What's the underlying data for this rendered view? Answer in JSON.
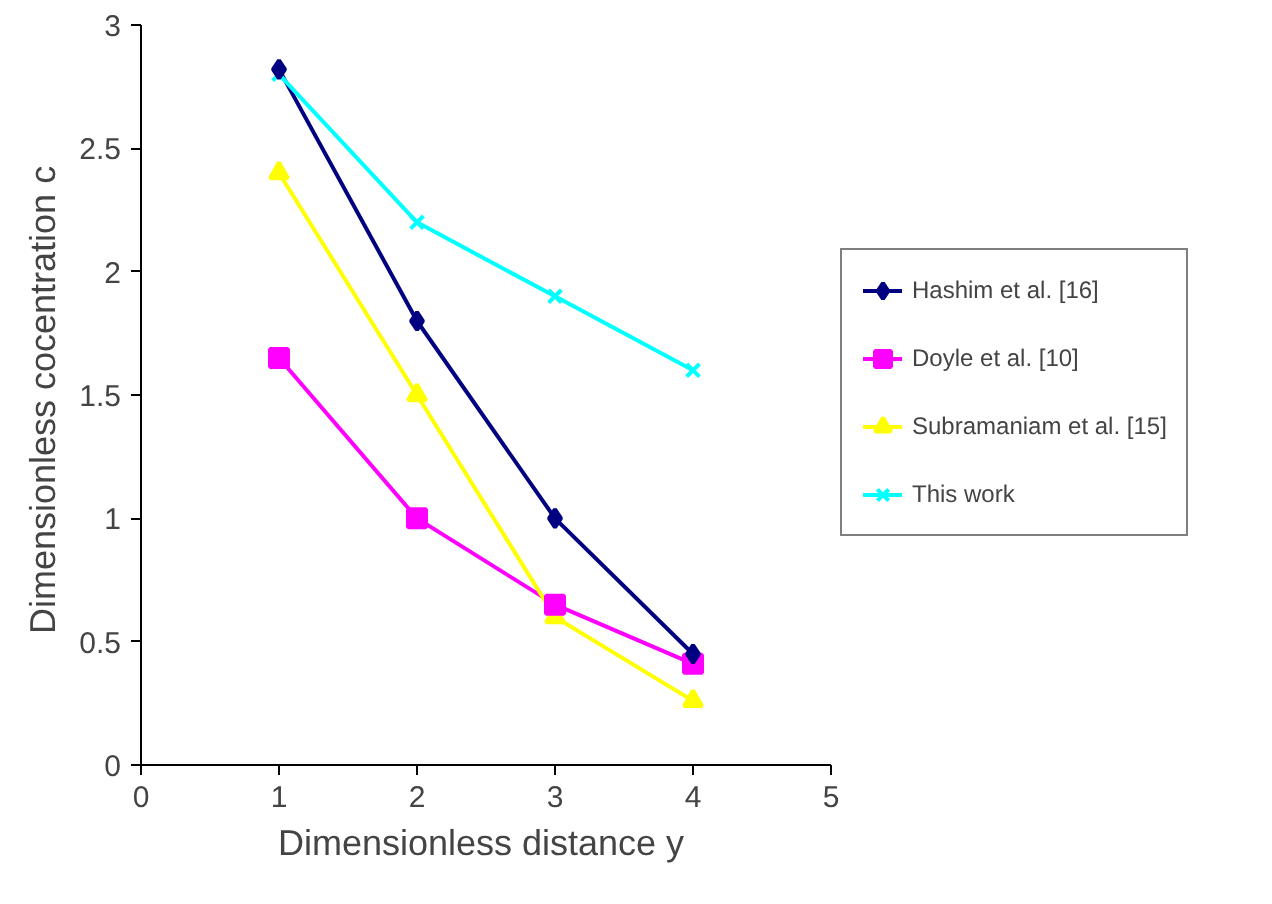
{
  "chart_data": {
    "type": "line",
    "xlabel": "Dimensionless distance  y",
    "ylabel": "Dimensionless  cocentration c",
    "x": [
      1,
      2,
      3,
      4
    ],
    "series": [
      {
        "name": "Hashim et al. [16]",
        "color": "#000080",
        "marker": "diamond",
        "values": [
          2.82,
          1.8,
          1.0,
          0.45
        ]
      },
      {
        "name": "Doyle et al. [10]",
        "color": "#ff00ff",
        "marker": "square",
        "values": [
          1.65,
          1.0,
          0.65,
          0.41
        ]
      },
      {
        "name": "Subramaniam et al. [15]",
        "color": "#ffff00",
        "marker": "triangle",
        "values": [
          2.4,
          1.5,
          0.6,
          0.26
        ]
      },
      {
        "name": "This work",
        "color": "#00ffff",
        "marker": "cross",
        "values": [
          2.8,
          2.2,
          1.9,
          1.6
        ]
      }
    ],
    "xlim": [
      0,
      5
    ],
    "xticks": [
      0,
      1,
      2,
      3,
      4,
      5
    ],
    "ylim": [
      0,
      3
    ],
    "yticks": [
      0,
      {
        "value": 0.5,
        "label": "0.5"
      },
      1,
      {
        "value": 1.5,
        "label": "1.5"
      },
      2,
      {
        "value": 2.5,
        "label": "2.5"
      },
      3
    ],
    "grid": false,
    "legend": "right"
  }
}
